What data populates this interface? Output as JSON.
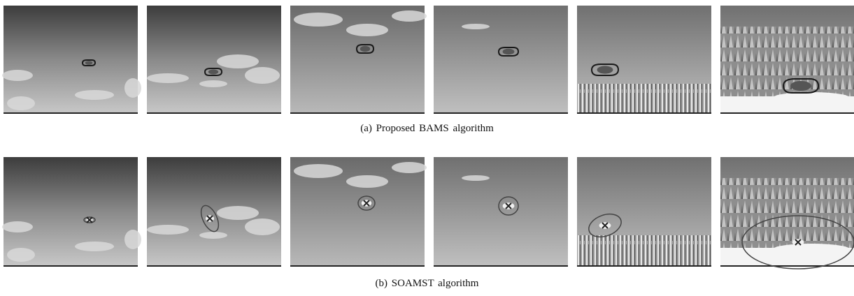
{
  "figure": {
    "captions": [
      "(a) Proposed BAMS algorithm",
      "(b) SOAMST algorithm"
    ]
  }
}
